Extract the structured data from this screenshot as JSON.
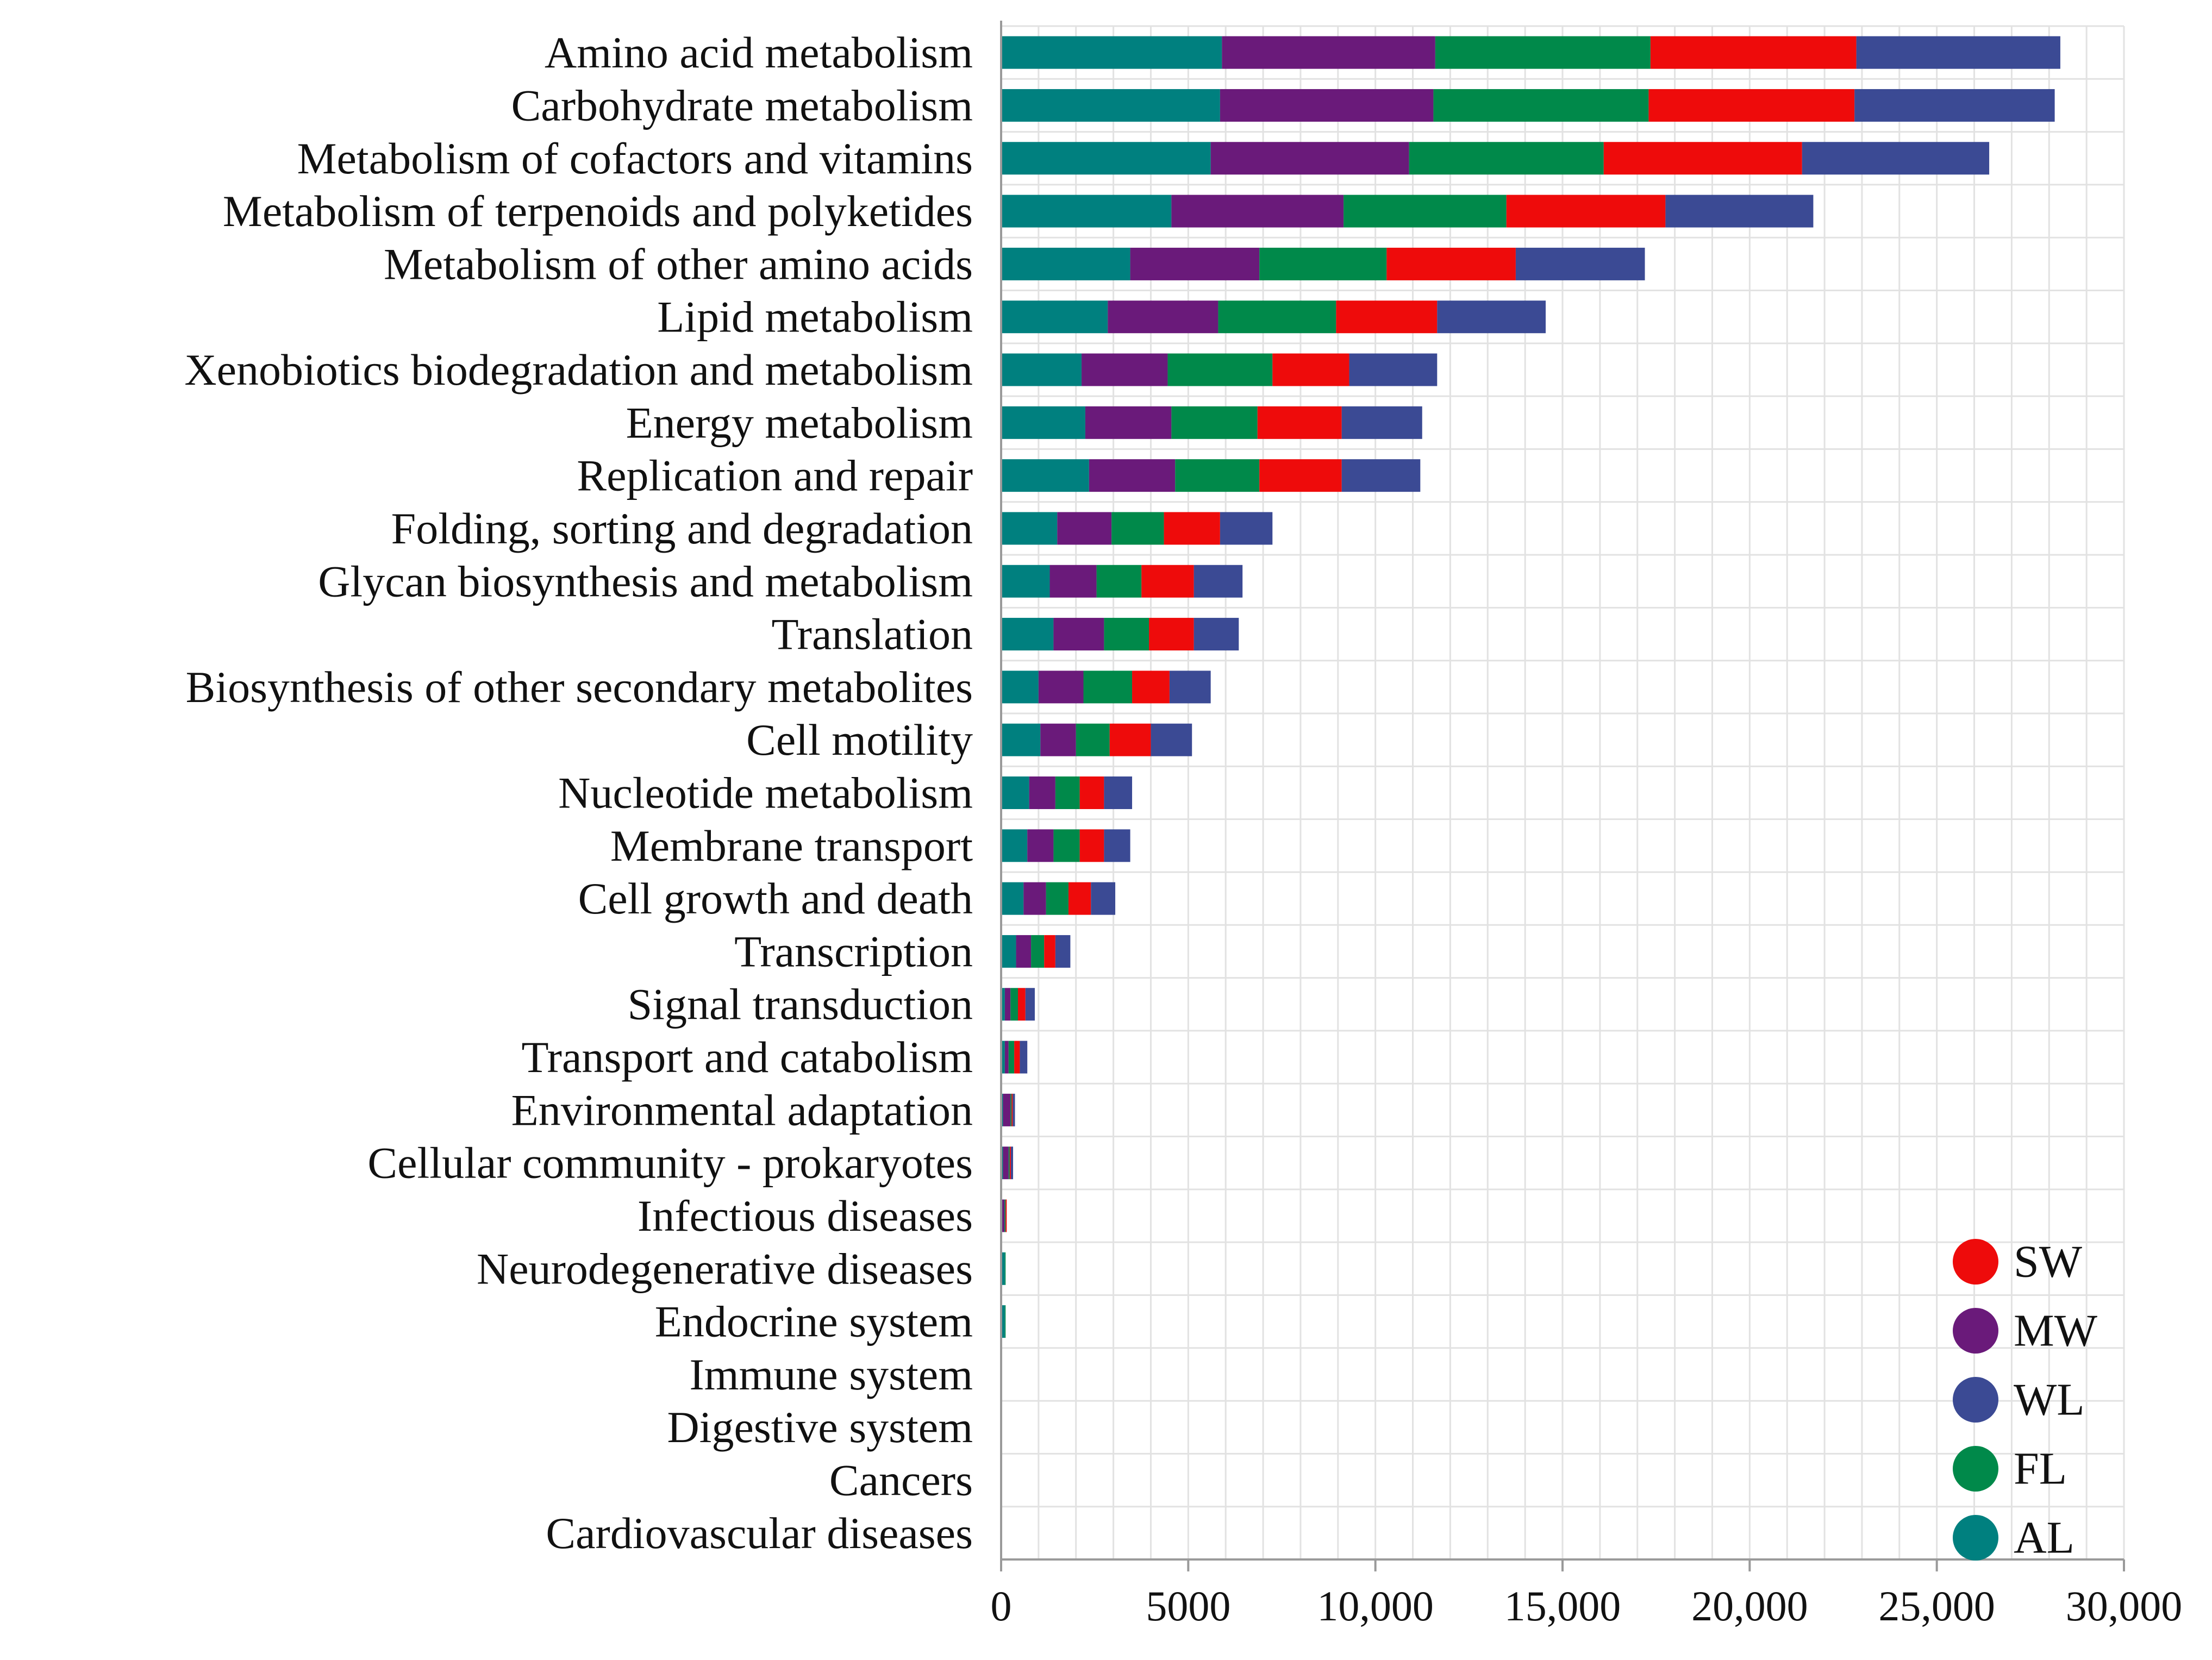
{
  "chart_data": {
    "type": "bar",
    "orientation": "horizontal",
    "stacked": true,
    "title": "",
    "xlabel": "",
    "ylabel": "",
    "xlim": [
      0,
      30000
    ],
    "xticks": [
      0,
      5000,
      10000,
      15000,
      20000,
      25000,
      30000
    ],
    "xtick_labels": [
      "0",
      "5000",
      "10,000",
      "15,000",
      "20,000",
      "25,000",
      "30,000"
    ],
    "grid": true,
    "legend_position": "bottom-right",
    "stack_order": [
      "AL",
      "MW",
      "FL",
      "SW",
      "WL"
    ],
    "legend_order": [
      "SW",
      "MW",
      "WL",
      "FL",
      "AL"
    ],
    "colors": {
      "AL": "#00807f",
      "MW": "#6a1a7a",
      "FL": "#00894a",
      "SW": "#ee0b0b",
      "WL": "#3b4a94"
    },
    "categories": [
      "Amino acid metabolism",
      "Carbohydrate metabolism",
      "Metabolism of cofactors and vitamins",
      "Metabolism of terpenoids and polyketides",
      "Metabolism of other amino acids",
      "Lipid metabolism",
      "Xenobiotics biodegradation and metabolism",
      "Energy metabolism",
      "Replication and repair",
      "Folding, sorting and degradation",
      "Glycan biosynthesis and metabolism",
      "Translation",
      "Biosynthesis of other secondary metabolites",
      "Cell motility",
      "Nucleotide metabolism",
      "Membrane transport",
      "Cell growth and death",
      "Transcription",
      "Signal transduction",
      "Transport and catabolism",
      "Environmental adaptation",
      "Cellular community - prokaryotes",
      "Infectious diseases",
      "Neurodegenerative diseases",
      "Endocrine system",
      "Immune system",
      "Digestive system",
      "Cancers",
      "Cardiovascular diseases"
    ],
    "series": [
      {
        "name": "AL",
        "values": [
          5900,
          5850,
          5600,
          4550,
          3450,
          2850,
          2150,
          2250,
          2350,
          1500,
          1300,
          1400,
          1000,
          1050,
          750,
          700,
          600,
          400,
          100,
          100,
          50,
          50,
          30,
          100,
          100,
          0,
          0,
          0,
          0
        ]
      },
      {
        "name": "MW",
        "values": [
          5700,
          5700,
          5300,
          4600,
          3450,
          2950,
          2300,
          2300,
          2300,
          1450,
          1250,
          1350,
          1200,
          950,
          700,
          700,
          600,
          400,
          150,
          100,
          200,
          150,
          60,
          0,
          0,
          0,
          0,
          0,
          0
        ]
      },
      {
        "name": "FL",
        "values": [
          5750,
          5750,
          5200,
          4350,
          3400,
          3150,
          2800,
          2300,
          2250,
          1400,
          1200,
          1200,
          1300,
          900,
          650,
          700,
          600,
          350,
          200,
          150,
          30,
          30,
          30,
          20,
          20,
          0,
          0,
          0,
          0
        ]
      },
      {
        "name": "SW",
        "values": [
          5500,
          5500,
          5300,
          4250,
          3450,
          2700,
          2050,
          2250,
          2200,
          1500,
          1400,
          1200,
          1000,
          1100,
          650,
          650,
          600,
          300,
          200,
          150,
          30,
          30,
          30,
          0,
          0,
          0,
          0,
          0,
          0
        ]
      },
      {
        "name": "WL",
        "values": [
          5450,
          5350,
          5000,
          3950,
          3450,
          2900,
          2350,
          2150,
          2100,
          1400,
          1300,
          1200,
          1100,
          1100,
          750,
          700,
          650,
          400,
          250,
          200,
          60,
          60,
          0,
          0,
          0,
          0,
          0,
          0,
          0
        ]
      }
    ]
  }
}
